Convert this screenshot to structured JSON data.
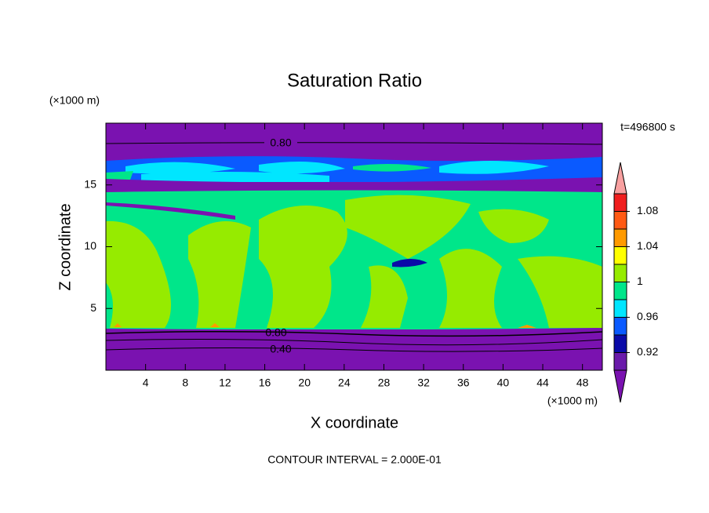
{
  "chart_data": {
    "type": "contour",
    "title": "Saturation Ratio",
    "x_label": "X coordinate",
    "y_label": "Z coordinate",
    "x_unit": "(×1000 m)",
    "y_unit": "(×1000 m)",
    "xlim": [
      0,
      50
    ],
    "ylim": [
      0,
      20
    ],
    "xticks": [
      4,
      8,
      12,
      16,
      20,
      24,
      28,
      32,
      36,
      40,
      44,
      48
    ],
    "yticks": [
      5,
      10,
      15
    ],
    "time_label": "t=496800 s",
    "footer": "CONTOUR INTERVAL = 2.000E-01",
    "contour_labels": [
      "0.80",
      "0.80",
      "0.40"
    ],
    "colorbar": {
      "lim": [
        0.9,
        1.1
      ],
      "ticks": [
        0.92,
        0.96,
        1,
        1.04,
        1.08
      ],
      "colors": [
        "#6a1aaa",
        "#0a0aa8",
        "#0a5aff",
        "#00e6ff",
        "#00e68a",
        "#96eb00",
        "#ffff00",
        "#ff9a00",
        "#ff5a14",
        "#f01e1e"
      ],
      "under_color": "#7a12b0",
      "over_color": "#f8a0a0"
    }
  }
}
